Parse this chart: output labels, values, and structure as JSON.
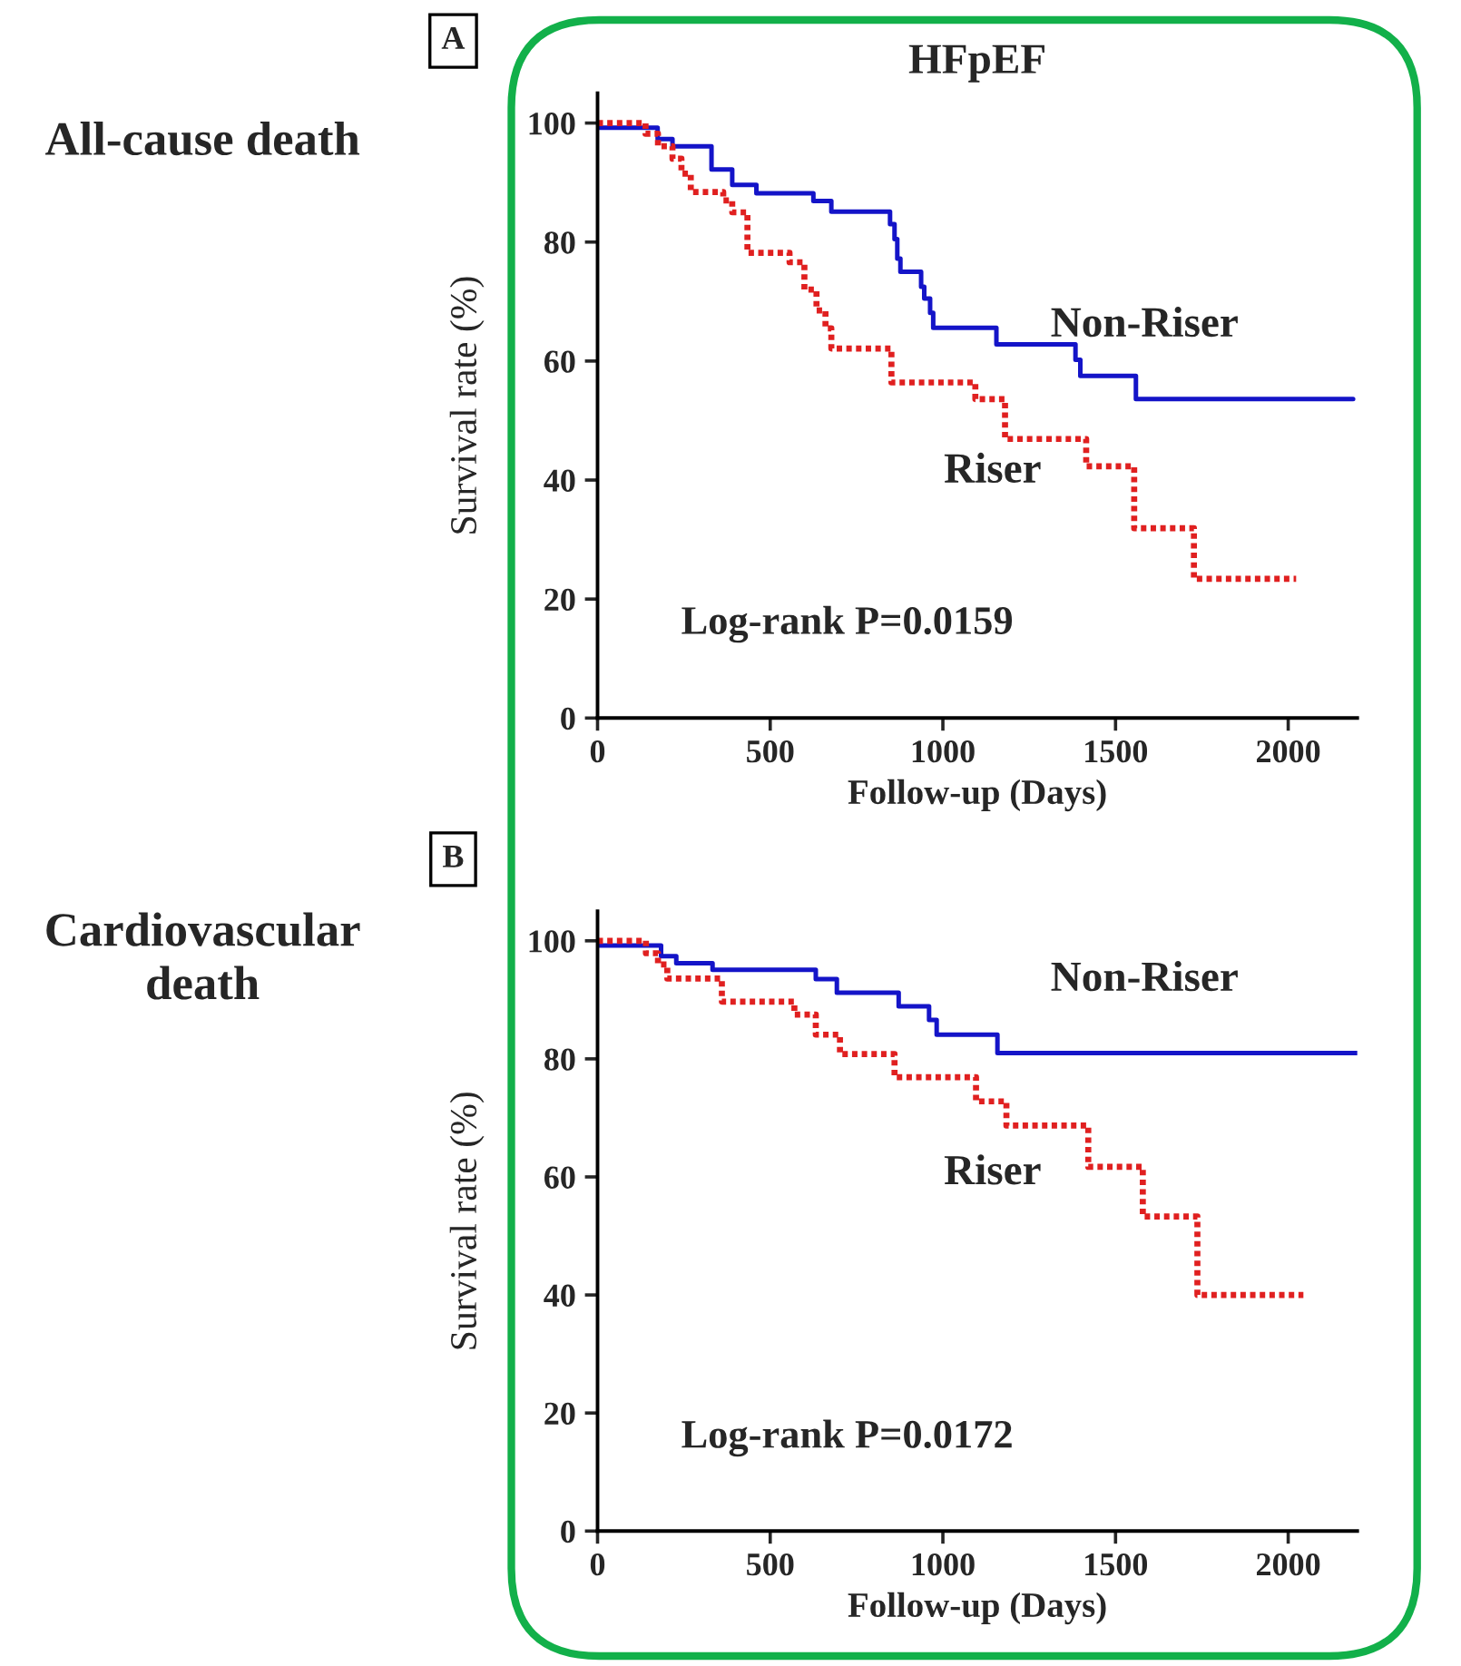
{
  "chart_data": [
    {
      "type": "step",
      "title": "HFpEF",
      "xlabel": "Follow-up (Days)",
      "ylabel": "Survival rate (%)",
      "xlim": [
        0,
        2200
      ],
      "ylim": [
        0,
        105
      ],
      "xticks": [
        0,
        500,
        1000,
        1500,
        2000
      ],
      "yticks": [
        0,
        20,
        40,
        60,
        80,
        100
      ],
      "grid": false,
      "legend": false,
      "annotations": [
        "A",
        "All-cause death",
        "Log-rank P=0.0159"
      ],
      "series": [
        {
          "name": "Non-Riser",
          "color": "#1414c8",
          "line_style": "solid",
          "x": [
            0,
            174,
            217,
            330,
            390,
            460,
            625,
            677,
            847,
            860,
            868,
            877,
            937,
            946,
            963,
            972,
            1076,
            1155,
            1384,
            1398,
            1559,
            1849,
            2188
          ],
          "values": [
            99.2,
            97.3,
            96.1,
            92.2,
            89.6,
            88.2,
            86.9,
            85.1,
            83,
            80.5,
            77.2,
            75,
            72.5,
            70.5,
            68.1,
            65.6,
            65.6,
            62.8,
            60.2,
            57.5,
            53.6,
            53.6,
            53.6
          ]
        },
        {
          "name": "Riser",
          "color": "#e02020",
          "line_style": "dotted",
          "x": [
            0,
            139,
            175,
            217,
            243,
            270,
            364,
            390,
            434,
            556,
            599,
            634,
            660,
            677,
            703,
            851,
            1094,
            1180,
            1415,
            1554,
            1727,
            2023
          ],
          "values": [
            100,
            98.2,
            96.1,
            94,
            91.5,
            88.4,
            87,
            85,
            78.2,
            76.6,
            72,
            68.5,
            65.5,
            62.1,
            62.1,
            56.4,
            53.6,
            46.9,
            42.3,
            31.9,
            23.4,
            23.4
          ]
        }
      ]
    },
    {
      "type": "step",
      "xlabel": "Follow-up (Days)",
      "ylabel": "Survival rate (%)",
      "xlim": [
        0,
        2200
      ],
      "ylim": [
        0,
        105
      ],
      "xticks": [
        0,
        500,
        1000,
        1500,
        2000
      ],
      "yticks": [
        0,
        20,
        40,
        60,
        80,
        100
      ],
      "grid": false,
      "legend": false,
      "annotations": [
        "B",
        "Cardiovascular death",
        "Log-rank P=0.0172"
      ],
      "series": [
        {
          "name": "Non-Riser",
          "color": "#1414c8",
          "line_style": "solid",
          "x": [
            0,
            184,
            228,
            333,
            632,
            693,
            872,
            960,
            982,
            1158,
            2200
          ],
          "values": [
            99.2,
            97.4,
            96.2,
            95.1,
            93.5,
            91.2,
            88.9,
            86.6,
            84.1,
            81,
            81
          ]
        },
        {
          "name": "Riser",
          "color": "#e02020",
          "line_style": "dotted",
          "x": [
            0,
            140,
            175,
            202,
            236,
            360,
            570,
            632,
            702,
            860,
            1096,
            1184,
            1421,
            1579,
            1737,
            2044
          ],
          "values": [
            100,
            97.9,
            96,
            93.6,
            93.6,
            89.7,
            87.5,
            84.1,
            80.8,
            76.9,
            72.8,
            68.7,
            61.7,
            53.3,
            40,
            40
          ]
        }
      ]
    }
  ]
}
